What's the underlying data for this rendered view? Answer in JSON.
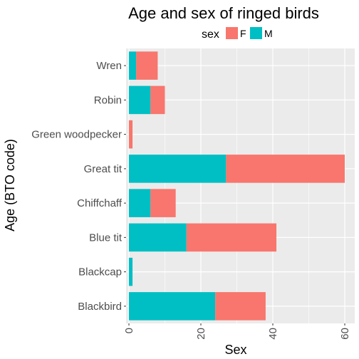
{
  "chart_data": {
    "type": "bar",
    "orientation": "horizontal",
    "stacked": true,
    "title": "Age and sex of ringed birds",
    "xlabel": "Sex",
    "ylabel": "Age (BTO code)",
    "xlim": [
      0,
      60
    ],
    "xticks": [
      "0",
      "20",
      "40",
      "60"
    ],
    "xtick_values": [
      0,
      20,
      40,
      60
    ],
    "categories": [
      "Wren",
      "Robin",
      "Green woodpecker",
      "Great tit",
      "Chiffchaff",
      "Blue tit",
      "Blackcap",
      "Blackbird"
    ],
    "series": [
      {
        "name": "M",
        "color": "#00BFC4",
        "values": [
          2,
          6,
          0,
          27,
          6,
          16,
          1,
          24
        ]
      },
      {
        "name": "F",
        "color": "#F8766D",
        "values": [
          6,
          4,
          1,
          33,
          7,
          25,
          0,
          14
        ]
      }
    ],
    "legend": {
      "title": "sex",
      "position": "top",
      "entries": [
        "F",
        "M"
      ]
    },
    "panel_background": "#EBEBEB",
    "grid_color": "#FFFFFF",
    "grid": true
  }
}
